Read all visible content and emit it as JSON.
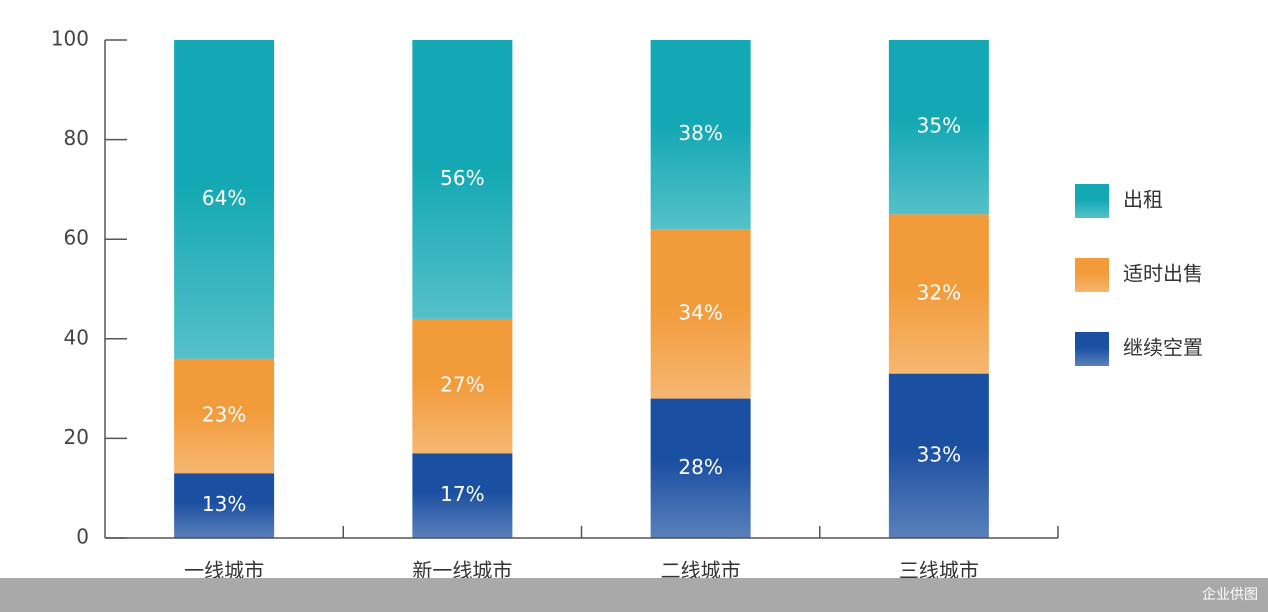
{
  "chart_data": {
    "type": "stacked-bar",
    "categories": [
      "一线城市",
      "新一线城市",
      "二线城市",
      "三线城市"
    ],
    "series": [
      {
        "name": "继续空置",
        "color": "#1b4fa1",
        "values": [
          13,
          17,
          28,
          33
        ],
        "value_labels": [
          "13%",
          "17%",
          "28%",
          "33%"
        ]
      },
      {
        "name": "适时出售",
        "color": "#f29b3a",
        "values": [
          23,
          27,
          34,
          32
        ],
        "value_labels": [
          "23%",
          "27%",
          "34%",
          "32%"
        ]
      },
      {
        "name": "出租",
        "color": "#13a8b4",
        "values": [
          64,
          56,
          38,
          35
        ],
        "value_labels": [
          "64%",
          "56%",
          "38%",
          "35%"
        ]
      }
    ],
    "ylim": [
      0,
      100
    ],
    "yticks": [
      0,
      20,
      40,
      60,
      80,
      100
    ],
    "grid": false,
    "legend": "right"
  },
  "credit": "企业供图"
}
